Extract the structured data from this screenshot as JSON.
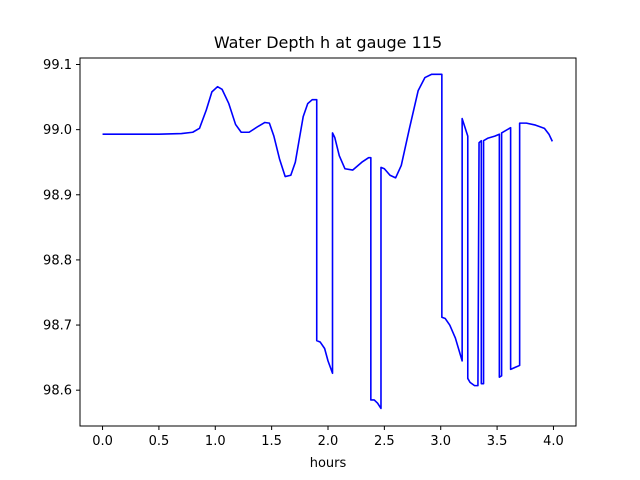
{
  "chart_data": {
    "type": "line",
    "title": "Water Depth h at gauge 115",
    "xlabel": "hours",
    "ylabel": "",
    "xlim": [
      -0.2,
      4.2
    ],
    "ylim": [
      98.545,
      99.11
    ],
    "xticks": [
      0.0,
      0.5,
      1.0,
      1.5,
      2.0,
      2.5,
      3.0,
      3.5,
      4.0
    ],
    "xtick_labels": [
      "0.0",
      "0.5",
      "1.0",
      "1.5",
      "2.0",
      "2.5",
      "3.0",
      "3.5",
      "4.0"
    ],
    "yticks": [
      98.6,
      98.7,
      98.8,
      98.9,
      99.0,
      99.1
    ],
    "ytick_labels": [
      "98.6",
      "98.7",
      "98.8",
      "98.9",
      "99.0",
      "99.1"
    ],
    "grid": false,
    "legend": "none",
    "series": [
      {
        "color": "#0000ff",
        "x": [
          0.0,
          0.5,
          0.7,
          0.8,
          0.86,
          0.92,
          0.97,
          1.02,
          1.06,
          1.12,
          1.18,
          1.23,
          1.3,
          1.38,
          1.44,
          1.48,
          1.52,
          1.57,
          1.62,
          1.67,
          1.71,
          1.74,
          1.78,
          1.82,
          1.86,
          1.9,
          1.9,
          1.93,
          1.97,
          2.0,
          2.04,
          2.04,
          2.06,
          2.1,
          2.15,
          2.22,
          2.3,
          2.36,
          2.38,
          2.38,
          2.41,
          2.44,
          2.47,
          2.47,
          2.5,
          2.55,
          2.6,
          2.65,
          2.72,
          2.8,
          2.86,
          2.92,
          2.96,
          3.01,
          3.01,
          3.04,
          3.08,
          3.13,
          3.19,
          3.19,
          3.24,
          3.24,
          3.26,
          3.3,
          3.33,
          3.34,
          3.36,
          3.36,
          3.38,
          3.38,
          3.42,
          3.48,
          3.52,
          3.52,
          3.54,
          3.54,
          3.62,
          3.62,
          3.66,
          3.7,
          3.7,
          3.76,
          3.84,
          3.92,
          3.96,
          3.99
        ],
        "y": [
          98.993,
          98.993,
          98.994,
          98.996,
          99.002,
          99.03,
          99.058,
          99.066,
          99.062,
          99.04,
          99.008,
          98.996,
          98.996,
          99.005,
          99.011,
          99.01,
          98.99,
          98.955,
          98.928,
          98.93,
          98.95,
          98.98,
          99.02,
          99.04,
          99.046,
          99.046,
          98.676,
          98.674,
          98.664,
          98.645,
          98.626,
          98.995,
          98.988,
          98.96,
          98.94,
          98.938,
          98.95,
          98.957,
          98.957,
          98.585,
          98.585,
          98.58,
          98.572,
          98.942,
          98.94,
          98.93,
          98.926,
          98.945,
          99.0,
          99.06,
          99.08,
          99.085,
          99.085,
          99.085,
          98.712,
          98.71,
          98.7,
          98.68,
          98.645,
          99.017,
          98.99,
          98.618,
          98.612,
          98.607,
          98.607,
          98.98,
          98.983,
          98.61,
          98.61,
          98.983,
          98.987,
          98.99,
          98.993,
          98.62,
          98.622,
          98.995,
          99.003,
          98.632,
          98.635,
          98.638,
          99.01,
          99.01,
          99.007,
          99.002,
          98.993,
          98.982
        ]
      }
    ]
  }
}
